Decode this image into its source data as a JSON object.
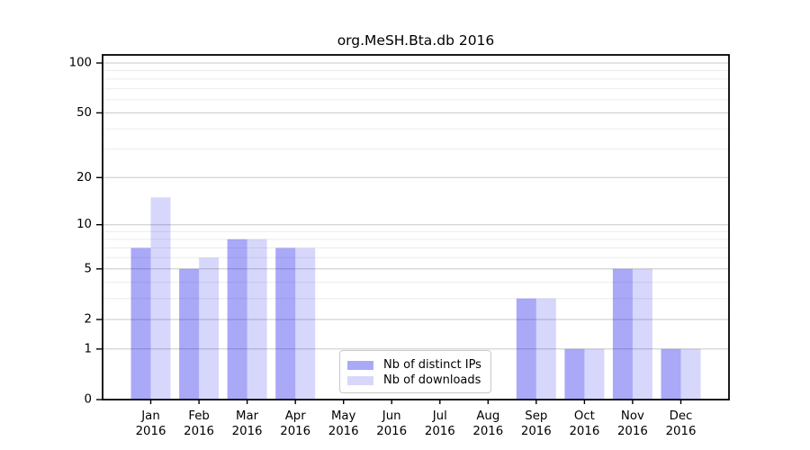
{
  "chart_data": {
    "type": "bar",
    "title": "org.MeSH.Bta.db 2016",
    "categories": [
      "Jan",
      "Feb",
      "Mar",
      "Apr",
      "May",
      "Jun",
      "Jul",
      "Aug",
      "Sep",
      "Oct",
      "Nov",
      "Dec"
    ],
    "year_label": "2016",
    "series": [
      {
        "name": "Nb of distinct IPs",
        "color": "rgba(10,10,235,0.35)",
        "values": [
          7,
          5,
          8,
          7,
          0,
          0,
          0,
          0,
          3,
          1,
          5,
          1
        ]
      },
      {
        "name": "Nb of downloads",
        "color": "rgba(10,10,235,0.165)",
        "values": [
          15,
          6,
          8,
          7,
          0,
          0,
          0,
          0,
          3,
          1,
          5,
          1
        ]
      }
    ],
    "yscale": "log1p",
    "ylim": [
      0,
      100
    ],
    "yticks_major": [
      0,
      1,
      2,
      5,
      10,
      20,
      50,
      100
    ],
    "yticks_minor": [
      3,
      4,
      6,
      7,
      8,
      9,
      30,
      40,
      60,
      70,
      80,
      90
    ],
    "grid": true,
    "legend_position": "lower-center",
    "xlabel": "",
    "ylabel": ""
  },
  "colors": {
    "grid_major": "#c8c8c8",
    "grid_minor": "#ececec",
    "axis": "#000000",
    "legend_border": "#c9c9c9",
    "background": "#ffffff"
  }
}
